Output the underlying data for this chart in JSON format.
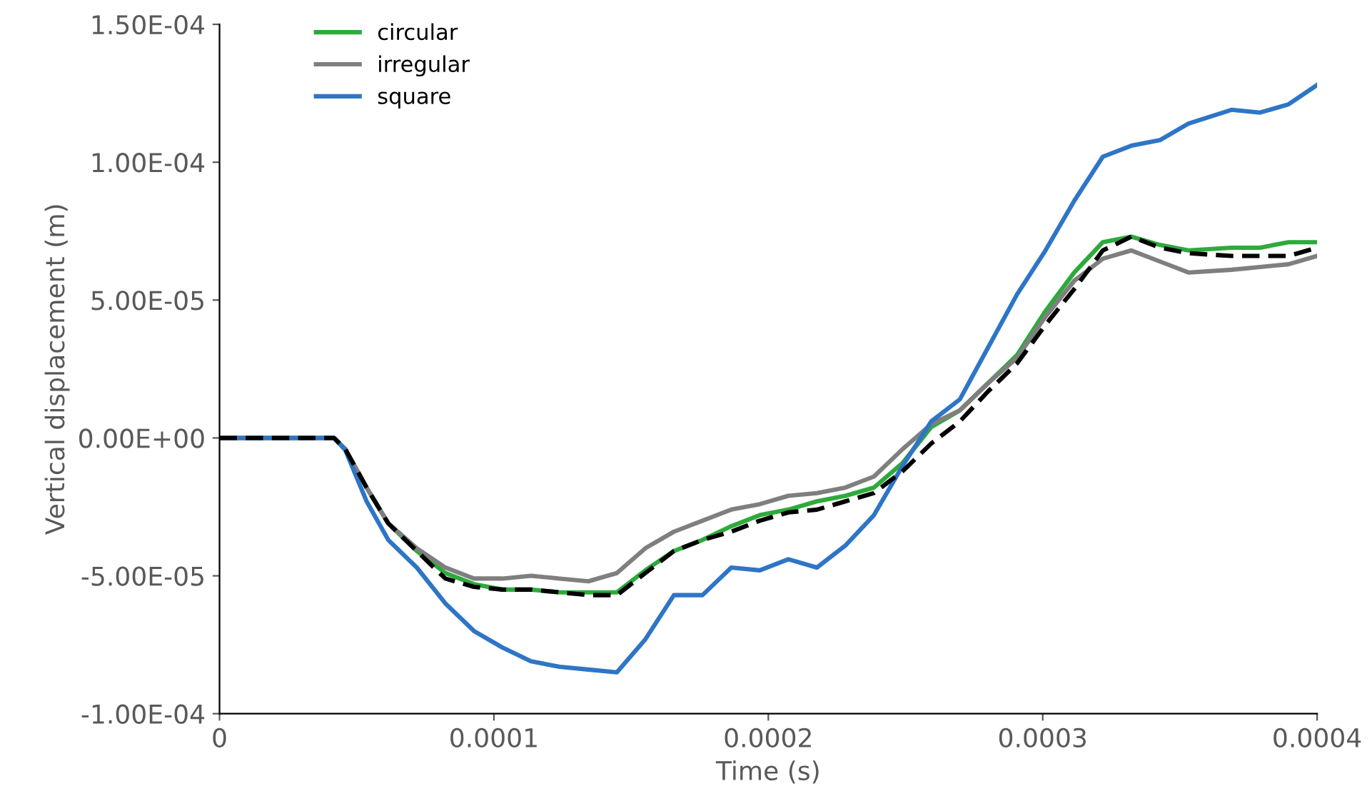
{
  "chart_data": {
    "type": "line",
    "xlabel": "Time (s)",
    "ylabel": "Vertical displacement (m)",
    "x": [
      0,
      4.17e-05,
      4.58e-05,
      5.36e-05,
      6.15e-05,
      7.19e-05,
      8.23e-05,
      9.27e-05,
      0.0001031,
      0.0001135,
      0.000124,
      0.0001344,
      0.0001448,
      0.0001552,
      0.0001656,
      0.000176,
      0.0001865,
      0.0001969,
      0.0002073,
      0.0002177,
      0.0002281,
      0.0002385,
      0.000249,
      0.0002594,
      0.0002698,
      0.0002802,
      0.0002906,
      0.000301,
      0.0003115,
      0.0003219,
      0.0003323,
      0.0003427,
      0.0003531,
      0.0003688,
      0.0003792,
      0.0003896,
      0.0004
    ],
    "series": [
      {
        "name": "circular",
        "color": "#2eaa3c",
        "values": [
          0,
          0,
          -4e-06,
          -1.8e-05,
          -3.1e-05,
          -4.1e-05,
          -4.9e-05,
          -5.3e-05,
          -5.5e-05,
          -5.5e-05,
          -5.6e-05,
          -5.6e-05,
          -5.6e-05,
          -4.8e-05,
          -4.1e-05,
          -3.7e-05,
          -3.2e-05,
          -2.8e-05,
          -2.6e-05,
          -2.3e-05,
          -2.1e-05,
          -1.8e-05,
          -9e-06,
          4e-06,
          1e-05,
          2e-05,
          3e-05,
          4.6e-05,
          6e-05,
          7.1e-05,
          7.3e-05,
          7e-05,
          6.8e-05,
          6.9e-05,
          6.9e-05,
          7.1e-05,
          7.1e-05
        ]
      },
      {
        "name": "irregular",
        "color": "#7f7f7f",
        "values": [
          0,
          0,
          -4e-06,
          -1.8e-05,
          -3.1e-05,
          -4e-05,
          -4.7e-05,
          -5.1e-05,
          -5.1e-05,
          -5e-05,
          -5.1e-05,
          -5.2e-05,
          -4.9e-05,
          -4e-05,
          -3.4e-05,
          -3e-05,
          -2.6e-05,
          -2.4e-05,
          -2.1e-05,
          -2e-05,
          -1.8e-05,
          -1.4e-05,
          -4e-06,
          5e-06,
          1e-05,
          2e-05,
          2.9e-05,
          4.4e-05,
          5.7e-05,
          6.5e-05,
          6.8e-05,
          6.4e-05,
          6e-05,
          6.1e-05,
          6.2e-05,
          6.3e-05,
          6.6e-05
        ]
      },
      {
        "name": "square",
        "color": "#2e75c6",
        "values": [
          0,
          0,
          -4.3e-06,
          -2.3e-05,
          -3.7e-05,
          -4.7e-05,
          -6e-05,
          -7e-05,
          -7.6e-05,
          -8.1e-05,
          -8.3e-05,
          -8.4e-05,
          -8.5e-05,
          -7.3e-05,
          -5.7e-05,
          -5.7e-05,
          -4.7e-05,
          -4.8e-05,
          -4.4e-05,
          -4.7e-05,
          -3.9e-05,
          -2.8e-05,
          -1e-05,
          6e-06,
          1.4e-05,
          3.3e-05,
          5.2e-05,
          6.8e-05,
          8.6e-05,
          0.000102,
          0.000106,
          0.000108,
          0.000114,
          0.000119,
          0.000118,
          0.000121,
          0.000128
        ]
      },
      {
        "color": "#000000",
        "line_style": "dashed",
        "values": [
          0,
          0,
          -4e-06,
          -1.8e-05,
          -3.1e-05,
          -4.1e-05,
          -5.1e-05,
          -5.4e-05,
          -5.5e-05,
          -5.5e-05,
          -5.6e-05,
          -5.7e-05,
          -5.7e-05,
          -4.9e-05,
          -4.1e-05,
          -3.7e-05,
          -3.4e-05,
          -3e-05,
          -2.7e-05,
          -2.6e-05,
          -2.3e-05,
          -2e-05,
          -1.2e-05,
          -2e-06,
          6e-06,
          1.7e-05,
          2.7e-05,
          4.1e-05,
          5.4e-05,
          6.8e-05,
          7.3e-05,
          6.9e-05,
          6.7e-05,
          6.6e-05,
          6.6e-05,
          6.6e-05,
          6.9e-05
        ]
      }
    ],
    "xlim": [
      0,
      0.0004
    ],
    "xticks": [
      0,
      0.0001,
      0.0002,
      0.0003,
      0.0004
    ],
    "ylim": [
      -0.0001,
      0.00015
    ],
    "yticks": [
      {
        "value": -0.0001,
        "label": "-1.00E-04"
      },
      {
        "value": -5e-05,
        "label": "-5.00E-05"
      },
      {
        "value": 0,
        "label": "0.00E+00"
      },
      {
        "value": 5e-05,
        "label": "5.00E-05"
      },
      {
        "value": 0.0001,
        "label": "1.00E-04"
      },
      {
        "value": 0.00015,
        "label": "1.50E-04"
      }
    ],
    "grid": false,
    "legend": "top left",
    "line_style": "solid",
    "marker": "none"
  }
}
